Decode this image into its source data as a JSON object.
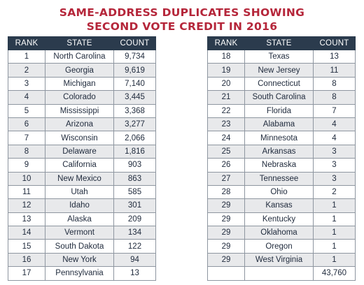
{
  "title_line1": "SAME-ADDRESS DUPLICATES SHOWING",
  "title_line2": "SECOND VOTE CREDIT IN 2016",
  "headers": {
    "rank": "RANK",
    "state": "STATE",
    "count": "COUNT"
  },
  "colors": {
    "title": "#b5263a",
    "header_bg": "#2b3b4d",
    "alt_row": "#e8e9eb"
  },
  "left_rows": [
    {
      "rank": "1",
      "state": "North Carolina",
      "count": "9,734"
    },
    {
      "rank": "2",
      "state": "Georgia",
      "count": "9,619"
    },
    {
      "rank": "3",
      "state": "Michigan",
      "count": "7,140"
    },
    {
      "rank": "4",
      "state": "Colorado",
      "count": "3,445"
    },
    {
      "rank": "5",
      "state": "Mississippi",
      "count": "3,368"
    },
    {
      "rank": "6",
      "state": "Arizona",
      "count": "3,277"
    },
    {
      "rank": "7",
      "state": "Wisconsin",
      "count": "2,066"
    },
    {
      "rank": "8",
      "state": "Delaware",
      "count": "1,816"
    },
    {
      "rank": "9",
      "state": "California",
      "count": "903"
    },
    {
      "rank": "10",
      "state": "New Mexico",
      "count": "863"
    },
    {
      "rank": "11",
      "state": "Utah",
      "count": "585"
    },
    {
      "rank": "12",
      "state": "Idaho",
      "count": "301"
    },
    {
      "rank": "13",
      "state": "Alaska",
      "count": "209"
    },
    {
      "rank": "14",
      "state": "Vermont",
      "count": "134"
    },
    {
      "rank": "15",
      "state": "South Dakota",
      "count": "122"
    },
    {
      "rank": "16",
      "state": "New York",
      "count": "94"
    },
    {
      "rank": "17",
      "state": "Pennsylvania",
      "count": "13"
    }
  ],
  "right_rows": [
    {
      "rank": "18",
      "state": "Texas",
      "count": "13"
    },
    {
      "rank": "19",
      "state": "New Jersey",
      "count": "11"
    },
    {
      "rank": "20",
      "state": "Connecticut",
      "count": "8"
    },
    {
      "rank": "21",
      "state": "South Carolina",
      "count": "8"
    },
    {
      "rank": "22",
      "state": "Florida",
      "count": "7"
    },
    {
      "rank": "23",
      "state": "Alabama",
      "count": "4"
    },
    {
      "rank": "24",
      "state": "Minnesota",
      "count": "4"
    },
    {
      "rank": "25",
      "state": "Arkansas",
      "count": "3"
    },
    {
      "rank": "26",
      "state": "Nebraska",
      "count": "3"
    },
    {
      "rank": "27",
      "state": "Tennessee",
      "count": "3"
    },
    {
      "rank": "28",
      "state": "Ohio",
      "count": "2"
    },
    {
      "rank": "29",
      "state": "Kansas",
      "count": "1"
    },
    {
      "rank": "29",
      "state": "Kentucky",
      "count": "1"
    },
    {
      "rank": "29",
      "state": "Oklahoma",
      "count": "1"
    },
    {
      "rank": "29",
      "state": "Oregon",
      "count": "1"
    },
    {
      "rank": "29",
      "state": "West Virginia",
      "count": "1"
    },
    {
      "rank": "",
      "state": "",
      "count": "43,760"
    }
  ]
}
